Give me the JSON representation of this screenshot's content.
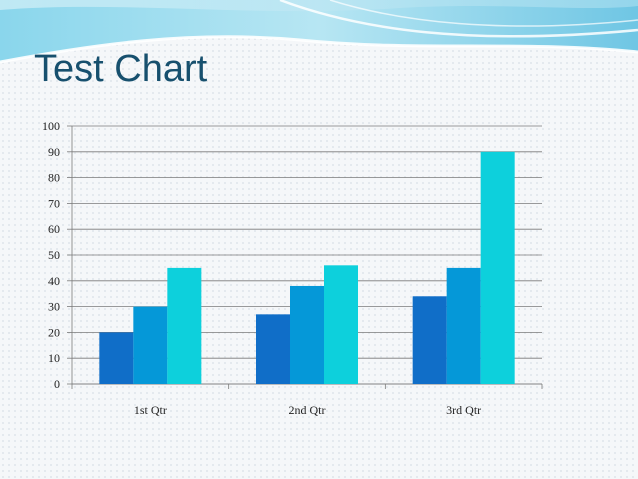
{
  "slide": {
    "title": "Test Chart"
  },
  "colors": {
    "series": [
      "#106ec8",
      "#0598d8",
      "#0dd0dc"
    ],
    "title": "#17506e",
    "banner": "#7fd0ea"
  },
  "chart_data": {
    "type": "bar",
    "title": "Test Chart",
    "categories": [
      "1st Qtr",
      "2nd Qtr",
      "3rd Qtr"
    ],
    "series": [
      {
        "values": [
          20,
          27,
          34
        ]
      },
      {
        "values": [
          30,
          38,
          45
        ]
      },
      {
        "values": [
          45,
          46,
          90
        ]
      }
    ],
    "ylim": [
      0,
      100
    ],
    "yticks": [
      0,
      10,
      20,
      30,
      40,
      50,
      60,
      70,
      80,
      90,
      100
    ],
    "grid": true,
    "legend": "none",
    "xlabel": "",
    "ylabel": ""
  }
}
